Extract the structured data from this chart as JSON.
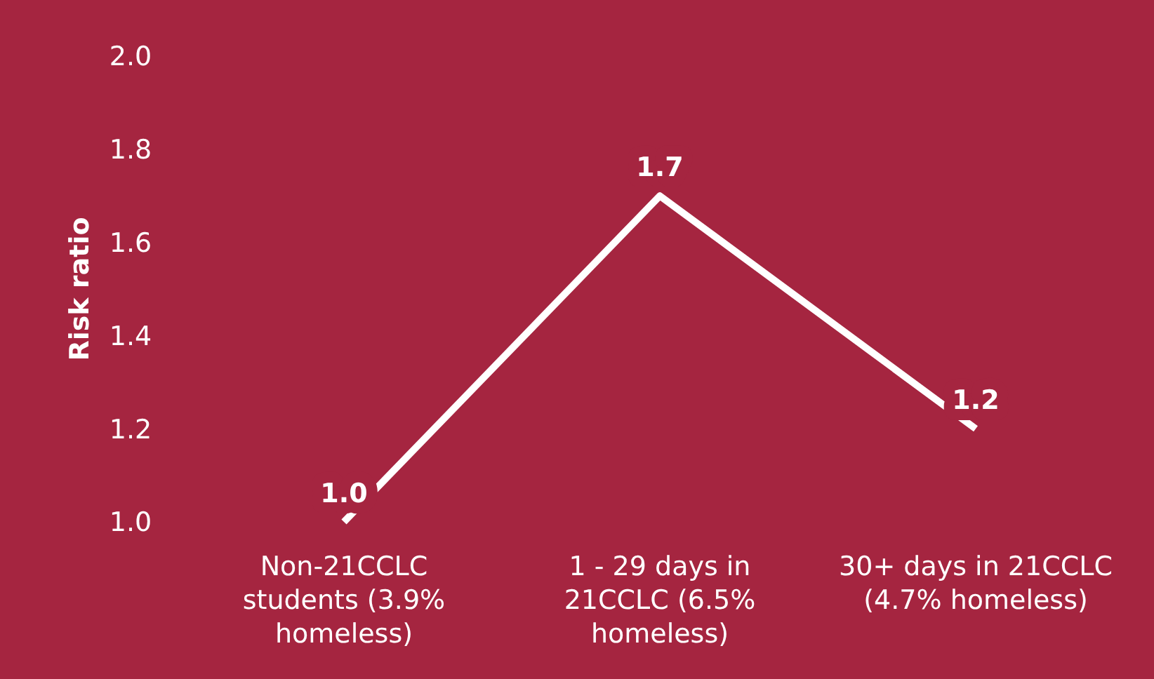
{
  "chart_data": {
    "type": "line",
    "ylabel": "Risk ratio",
    "categories": [
      "Non-21CCLC students (3.9% homeless)",
      "1 - 29 days in 21CCLC (6.5% homeless)",
      "30+ days in 21CCLC (4.7% homeless)"
    ],
    "series": [
      {
        "color": "#ffffff",
        "values": [
          1.0,
          1.7,
          1.2
        ],
        "value_labels": [
          "1.0",
          "1.7",
          "1.2"
        ]
      }
    ],
    "ylim": [
      1.0,
      2.0
    ],
    "yticks": [
      {
        "value": 1.0,
        "label": "1.0"
      },
      {
        "value": 1.2,
        "label": "1.2"
      },
      {
        "value": 1.4,
        "label": "1.4"
      },
      {
        "value": 1.6,
        "label": "1.6"
      },
      {
        "value": 1.8,
        "label": "1.8"
      },
      {
        "value": 2.0,
        "label": "2.0"
      }
    ],
    "grid": false,
    "line_style": "solid"
  }
}
